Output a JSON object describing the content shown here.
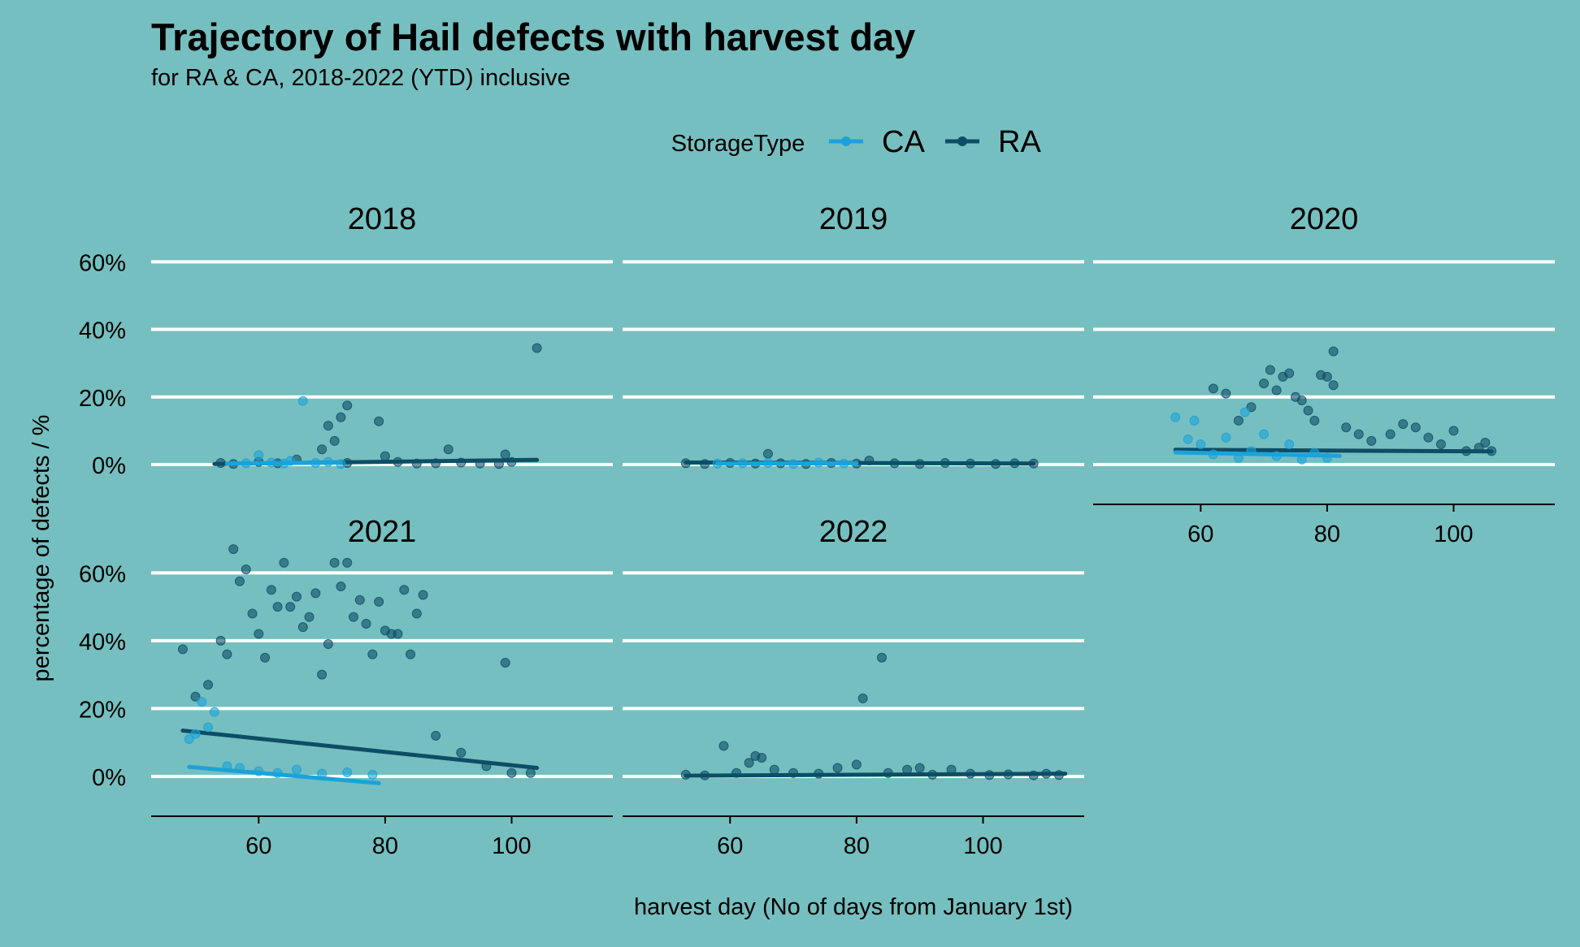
{
  "chart_data": {
    "type": "scatter",
    "title": "Trajectory of Hail defects with harvest day",
    "subtitle": "for RA & CA, 2018-2022 (YTD) inclusive",
    "xlabel": "harvest day (No of days from January 1st)",
    "ylabel": "percentage of defects / %",
    "legend": {
      "title": "StorageType",
      "position": "top",
      "entries": [
        {
          "name": "CA",
          "color": "#1aa3d9"
        },
        {
          "name": "RA",
          "color": "#0d4d66"
        }
      ]
    },
    "x_ticks": [
      60,
      80,
      100
    ],
    "xlim": [
      43,
      116
    ],
    "y_ticks": [
      "0%",
      "20%",
      "40%",
      "60%"
    ],
    "y_tick_values": [
      0,
      20,
      40,
      60
    ],
    "ylim": [
      -6,
      62
    ],
    "grid": "horizontal major only",
    "panels": [
      {
        "label": "2018",
        "series": [
          {
            "name": "CA",
            "points": [
              [
                58,
                0.4
              ],
              [
                60,
                2.8
              ],
              [
                62,
                0.6
              ],
              [
                64,
                0.3
              ],
              [
                65,
                1.1
              ],
              [
                67,
                18.8
              ],
              [
                69,
                0.5
              ],
              [
                71,
                0.8
              ],
              [
                73,
                0.2
              ]
            ],
            "trend": {
              "x": [
                55,
                73
              ],
              "y": [
                0.3,
                0.6
              ]
            }
          },
          {
            "name": "RA",
            "points": [
              [
                54,
                0.5
              ],
              [
                56,
                0.2
              ],
              [
                60,
                0.8
              ],
              [
                63,
                0.4
              ],
              [
                66,
                1.5
              ],
              [
                70,
                4.5
              ],
              [
                71,
                11.5
              ],
              [
                72,
                7
              ],
              [
                73,
                14
              ],
              [
                74,
                17.5
              ],
              [
                74,
                0.5
              ],
              [
                79,
                12.8
              ],
              [
                80,
                2.5
              ],
              [
                82,
                0.8
              ],
              [
                85,
                0.3
              ],
              [
                88,
                0.4
              ],
              [
                90,
                4.5
              ],
              [
                92,
                0.6
              ],
              [
                95,
                0.3
              ],
              [
                98,
                0.2
              ],
              [
                99,
                3
              ],
              [
                100,
                0.8
              ],
              [
                104,
                34.5
              ]
            ],
            "trend": {
              "x": [
                53,
                104
              ],
              "y": [
                0.2,
                1.4
              ]
            }
          }
        ]
      },
      {
        "label": "2019",
        "series": [
          {
            "name": "CA",
            "points": [
              [
                58,
                0.3
              ],
              [
                62,
                0.4
              ],
              [
                66,
                0.5
              ],
              [
                70,
                0.2
              ],
              [
                74,
                0.6
              ],
              [
                78,
                0.3
              ]
            ],
            "trend": {
              "x": [
                58,
                80
              ],
              "y": [
                0.3,
                0.4
              ]
            }
          },
          {
            "name": "RA",
            "points": [
              [
                53,
                0.4
              ],
              [
                56,
                0.2
              ],
              [
                60,
                0.5
              ],
              [
                64,
                0.3
              ],
              [
                66,
                3.2
              ],
              [
                68,
                0.4
              ],
              [
                72,
                0.2
              ],
              [
                76,
                0.5
              ],
              [
                80,
                0.3
              ],
              [
                82,
                1.2
              ],
              [
                86,
                0.4
              ],
              [
                90,
                0.2
              ],
              [
                94,
                0.5
              ],
              [
                98,
                0.3
              ],
              [
                102,
                0.2
              ],
              [
                105,
                0.4
              ],
              [
                108,
                0.3
              ]
            ],
            "trend": {
              "x": [
                53,
                108
              ],
              "y": [
                0.6,
                0.3
              ]
            }
          }
        ]
      },
      {
        "label": "2020",
        "series": [
          {
            "name": "CA",
            "points": [
              [
                56,
                14
              ],
              [
                58,
                7.5
              ],
              [
                59,
                13
              ],
              [
                60,
                6
              ],
              [
                62,
                3
              ],
              [
                64,
                8
              ],
              [
                66,
                2
              ],
              [
                67,
                15.5
              ],
              [
                68,
                4
              ],
              [
                70,
                9
              ],
              [
                72,
                2.5
              ],
              [
                74,
                6
              ],
              [
                76,
                1.5
              ],
              [
                78,
                3.5
              ],
              [
                80,
                2
              ]
            ],
            "trend": {
              "x": [
                56,
                82
              ],
              "y": [
                3.6,
                2.6
              ]
            }
          },
          {
            "name": "RA",
            "points": [
              [
                62,
                22.5
              ],
              [
                64,
                21
              ],
              [
                66,
                13
              ],
              [
                68,
                17
              ],
              [
                70,
                24
              ],
              [
                71,
                28
              ],
              [
                72,
                22
              ],
              [
                73,
                26
              ],
              [
                74,
                27
              ],
              [
                75,
                20
              ],
              [
                76,
                19
              ],
              [
                77,
                16
              ],
              [
                78,
                13
              ],
              [
                79,
                26.5
              ],
              [
                80,
                26
              ],
              [
                81,
                33.5
              ],
              [
                81,
                23.5
              ],
              [
                83,
                11
              ],
              [
                85,
                9
              ],
              [
                87,
                7
              ],
              [
                90,
                9
              ],
              [
                92,
                12
              ],
              [
                94,
                11
              ],
              [
                96,
                8
              ],
              [
                98,
                6
              ],
              [
                100,
                10
              ],
              [
                102,
                4
              ],
              [
                104,
                5
              ],
              [
                105,
                6.5
              ],
              [
                106,
                4
              ]
            ],
            "trend": {
              "x": [
                56,
                106
              ],
              "y": [
                4.4,
                3.9
              ]
            }
          }
        ]
      },
      {
        "label": "2021",
        "series": [
          {
            "name": "CA",
            "points": [
              [
                49,
                11
              ],
              [
                50,
                12.5
              ],
              [
                51,
                22
              ],
              [
                52,
                14.5
              ],
              [
                53,
                19
              ],
              [
                55,
                3
              ],
              [
                57,
                2.5
              ],
              [
                60,
                1.5
              ],
              [
                63,
                1
              ],
              [
                66,
                2
              ],
              [
                70,
                0.8
              ],
              [
                74,
                1.2
              ],
              [
                78,
                0.5
              ]
            ],
            "trend": {
              "x": [
                49,
                79
              ],
              "y": [
                2.8,
                -2
              ]
            }
          },
          {
            "name": "RA",
            "points": [
              [
                48,
                37.5
              ],
              [
                50,
                23.5
              ],
              [
                52,
                27
              ],
              [
                54,
                40
              ],
              [
                55,
                36
              ],
              [
                56,
                67
              ],
              [
                57,
                57.5
              ],
              [
                58,
                61
              ],
              [
                59,
                48
              ],
              [
                60,
                42
              ],
              [
                61,
                35
              ],
              [
                62,
                55
              ],
              [
                63,
                50
              ],
              [
                64,
                63
              ],
              [
                65,
                50
              ],
              [
                66,
                53
              ],
              [
                67,
                44
              ],
              [
                68,
                47
              ],
              [
                69,
                54
              ],
              [
                70,
                30
              ],
              [
                71,
                39
              ],
              [
                72,
                63
              ],
              [
                73,
                56
              ],
              [
                74,
                63
              ],
              [
                75,
                47
              ],
              [
                76,
                52
              ],
              [
                77,
                45
              ],
              [
                78,
                36
              ],
              [
                79,
                51.5
              ],
              [
                80,
                43
              ],
              [
                81,
                42
              ],
              [
                82,
                42
              ],
              [
                83,
                55
              ],
              [
                84,
                36
              ],
              [
                85,
                48
              ],
              [
                86,
                53.5
              ],
              [
                88,
                12
              ],
              [
                92,
                7
              ],
              [
                96,
                3
              ],
              [
                99,
                33.5
              ],
              [
                100,
                1
              ],
              [
                103,
                1
              ]
            ],
            "trend": {
              "x": [
                48,
                104
              ],
              "y": [
                13.5,
                2.5
              ]
            }
          }
        ]
      },
      {
        "label": "2022",
        "series": [
          {
            "name": "CA",
            "points": [],
            "trend": null
          },
          {
            "name": "RA",
            "points": [
              [
                53,
                0.5
              ],
              [
                56,
                0.3
              ],
              [
                59,
                9
              ],
              [
                61,
                1
              ],
              [
                63,
                4
              ],
              [
                64,
                6
              ],
              [
                65,
                5.5
              ],
              [
                67,
                2
              ],
              [
                70,
                1
              ],
              [
                74,
                0.8
              ],
              [
                77,
                2.5
              ],
              [
                80,
                3.5
              ],
              [
                81,
                23
              ],
              [
                84,
                35
              ],
              [
                85,
                1
              ],
              [
                88,
                2
              ],
              [
                90,
                2.5
              ],
              [
                92,
                0.5
              ],
              [
                95,
                2
              ],
              [
                98,
                0.8
              ],
              [
                101,
                0.4
              ],
              [
                104,
                0.6
              ],
              [
                108,
                0.3
              ],
              [
                110,
                0.8
              ],
              [
                112,
                0.4
              ]
            ],
            "trend": {
              "x": [
                53,
                113
              ],
              "y": [
                0.2,
                0.8
              ]
            }
          }
        ]
      }
    ]
  }
}
